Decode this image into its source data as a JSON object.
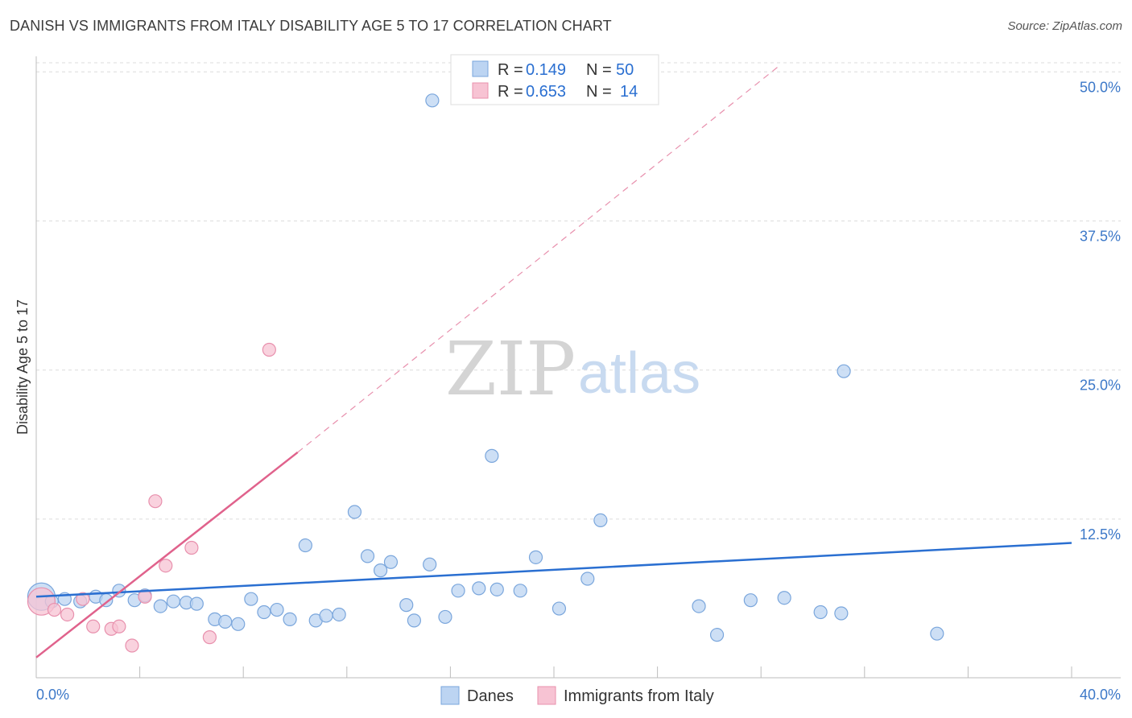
{
  "header": {
    "title": "DANISH VS IMMIGRANTS FROM ITALY DISABILITY AGE 5 TO 17 CORRELATION CHART",
    "source": "Source: ZipAtlas.com"
  },
  "watermark": {
    "zip": "ZIP",
    "atlas": "atlas"
  },
  "colors": {
    "danes_fill": "#bcd4f2",
    "danes_stroke": "#7aa6dc",
    "danes_line": "#2a6fd1",
    "italy_fill": "#f7c3d3",
    "italy_stroke": "#e890ad",
    "italy_line": "#e0628c",
    "tick_text": "#3c78c8",
    "grid": "#dcdcdc"
  },
  "legend_box": {
    "rows": [
      {
        "r_label": "R =",
        "r_value": "0.149",
        "n_label": "N =",
        "n_value": "50"
      },
      {
        "r_label": "R =",
        "r_value": "0.653",
        "n_label": "N =",
        "n_value": "14"
      }
    ]
  },
  "chart_data": {
    "type": "scatter",
    "title": "DANISH VS IMMIGRANTS FROM ITALY DISABILITY AGE 5 TO 17 CORRELATION CHART",
    "xlabel": "",
    "ylabel": "Disability Age 5 to 17",
    "xlim": [
      0,
      40
    ],
    "ylim": [
      -0.8,
      51.3
    ],
    "x_tick_labels": [
      "0.0%",
      "40.0%"
    ],
    "y_ticks": [
      12.5,
      25.0,
      37.5,
      50.0
    ],
    "y_tick_labels": [
      "12.5%",
      "25.0%",
      "37.5%",
      "50.0%"
    ],
    "legend": [
      "Danes",
      "Immigrants from Italy"
    ],
    "series": [
      {
        "name": "Danes",
        "r": 0.149,
        "n": 50,
        "trend": {
          "x": [
            0,
            40
          ],
          "y": [
            6.0,
            10.5
          ]
        },
        "points": [
          [
            0.2,
            6.0
          ],
          [
            0.6,
            5.6
          ],
          [
            1.1,
            5.8
          ],
          [
            1.7,
            5.6
          ],
          [
            2.3,
            6.0
          ],
          [
            2.7,
            5.7
          ],
          [
            3.2,
            6.5
          ],
          [
            3.8,
            5.7
          ],
          [
            4.2,
            6.1
          ],
          [
            4.8,
            5.2
          ],
          [
            5.3,
            5.6
          ],
          [
            5.8,
            5.5
          ],
          [
            6.2,
            5.4
          ],
          [
            6.9,
            4.1
          ],
          [
            7.3,
            3.9
          ],
          [
            7.8,
            3.7
          ],
          [
            8.3,
            5.8
          ],
          [
            8.8,
            4.7
          ],
          [
            9.3,
            4.9
          ],
          [
            9.8,
            4.1
          ],
          [
            10.4,
            10.3
          ],
          [
            10.8,
            4.0
          ],
          [
            11.2,
            4.4
          ],
          [
            11.7,
            4.5
          ],
          [
            12.3,
            13.1
          ],
          [
            12.8,
            9.4
          ],
          [
            13.3,
            8.2
          ],
          [
            13.7,
            8.9
          ],
          [
            14.3,
            5.3
          ],
          [
            14.6,
            4.0
          ],
          [
            15.2,
            8.7
          ],
          [
            15.3,
            47.6
          ],
          [
            15.8,
            4.3
          ],
          [
            16.3,
            6.5
          ],
          [
            17.1,
            6.7
          ],
          [
            17.6,
            17.8
          ],
          [
            17.8,
            6.6
          ],
          [
            18.7,
            6.5
          ],
          [
            19.3,
            9.3
          ],
          [
            20.2,
            5.0
          ],
          [
            21.3,
            7.5
          ],
          [
            21.8,
            12.4
          ],
          [
            25.6,
            5.2
          ],
          [
            26.3,
            2.8
          ],
          [
            27.6,
            5.7
          ],
          [
            28.9,
            5.9
          ],
          [
            30.3,
            4.7
          ],
          [
            31.1,
            4.6
          ],
          [
            31.2,
            24.9
          ],
          [
            34.8,
            2.9
          ]
        ]
      },
      {
        "name": "Immigrants from Italy",
        "r": 0.653,
        "n": 14,
        "trend": {
          "x": [
            0,
            10.1
          ],
          "y": [
            0.9,
            18.1
          ]
        },
        "trend_dashed": {
          "x": [
            10.1,
            28.7
          ],
          "y": [
            18.1,
            50.5
          ]
        },
        "points": [
          [
            0.2,
            5.6
          ],
          [
            0.7,
            4.9
          ],
          [
            1.2,
            4.5
          ],
          [
            1.8,
            5.8
          ],
          [
            2.2,
            3.5
          ],
          [
            2.9,
            3.3
          ],
          [
            3.2,
            3.5
          ],
          [
            3.7,
            1.9
          ],
          [
            4.2,
            6.0
          ],
          [
            4.6,
            14.0
          ],
          [
            5.0,
            8.6
          ],
          [
            6.0,
            10.1
          ],
          [
            6.7,
            2.6
          ],
          [
            9.0,
            26.7
          ]
        ]
      }
    ]
  }
}
